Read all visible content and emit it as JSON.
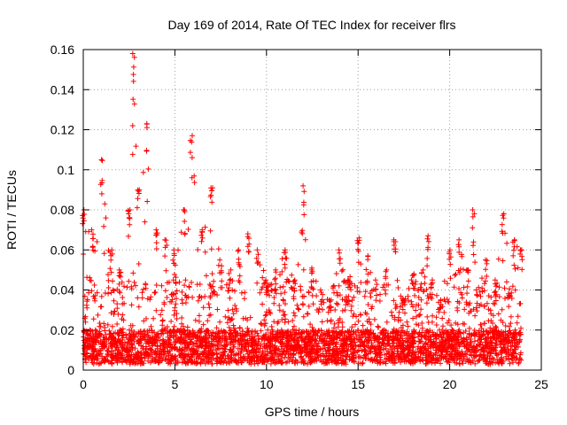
{
  "chart_data": {
    "type": "scatter",
    "title": "Day 169 of 2014, Rate Of TEC Index for receiver flrs",
    "xlabel": "GPS time / hours",
    "ylabel": "ROTI / TECUs",
    "xlim": [
      0,
      25
    ],
    "ylim": [
      0,
      0.16
    ],
    "xticks": [
      "0",
      "5",
      "10",
      "15",
      "20",
      "25"
    ],
    "yticks": [
      "0",
      "0.02",
      "0.04",
      "0.06",
      "0.08",
      "0.1",
      "0.12",
      "0.14",
      "0.16"
    ],
    "grid": true,
    "marker": "+",
    "series": [
      {
        "name": "ROTI",
        "color": "#ff0000",
        "time_range_hours": [
          0,
          23.9
        ],
        "baseline_range": [
          0.003,
          0.02
        ],
        "hourly_envelope": {
          "x": [
            0,
            0.5,
            1,
            1.5,
            2,
            2.5,
            2.75,
            3,
            3.5,
            4,
            4.5,
            5,
            5.5,
            5.9,
            6.5,
            7,
            7.5,
            8,
            8.5,
            9,
            9.5,
            10,
            10.5,
            11,
            11.5,
            12,
            12.5,
            13,
            13.5,
            14,
            14.5,
            15,
            15.5,
            16,
            16.5,
            17,
            17.5,
            18,
            18.5,
            18.8,
            19,
            19.5,
            20,
            20.5,
            21,
            21.3,
            21.5,
            22,
            22.5,
            22.9,
            23.5,
            23.9
          ],
          "max": [
            0.08,
            0.07,
            0.105,
            0.06,
            0.05,
            0.08,
            0.158,
            0.09,
            0.123,
            0.07,
            0.065,
            0.06,
            0.08,
            0.117,
            0.07,
            0.091,
            0.055,
            0.05,
            0.06,
            0.068,
            0.06,
            0.045,
            0.05,
            0.06,
            0.045,
            0.092,
            0.05,
            0.04,
            0.035,
            0.06,
            0.045,
            0.066,
            0.057,
            0.045,
            0.05,
            0.065,
            0.035,
            0.048,
            0.05,
            0.067,
            0.045,
            0.035,
            0.06,
            0.065,
            0.05,
            0.08,
            0.04,
            0.055,
            0.045,
            0.078,
            0.065,
            0.06
          ]
        }
      }
    ]
  }
}
